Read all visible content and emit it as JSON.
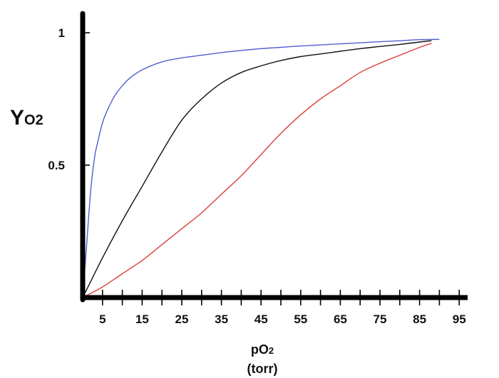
{
  "chart_data": {
    "type": "line",
    "title": "",
    "xlabel": "pO2",
    "xlabel_unit": "(torr)",
    "ylabel": "YO2",
    "xlim": [
      0,
      100
    ],
    "ylim": [
      0,
      1.05
    ],
    "x_ticks": [
      5,
      15,
      25,
      35,
      45,
      55,
      65,
      75,
      85,
      95
    ],
    "x_minor_ticks": [
      0,
      10,
      20,
      30,
      40,
      50,
      60,
      70,
      80,
      90
    ],
    "y_ticks": [
      {
        "value": 0.5,
        "label": "0.5"
      },
      {
        "value": 1,
        "label": "1"
      }
    ],
    "grid": false,
    "series": [
      {
        "name": "blue curve",
        "color": "#4f5fd0",
        "x": [
          0,
          1,
          2,
          3,
          4,
          5,
          6,
          8,
          10,
          12,
          15,
          20,
          25,
          30,
          35,
          40,
          45,
          50,
          55,
          60,
          65,
          70,
          75,
          80,
          85,
          90
        ],
        "y": [
          0.0,
          0.2,
          0.4,
          0.53,
          0.6,
          0.66,
          0.7,
          0.76,
          0.8,
          0.83,
          0.86,
          0.89,
          0.905,
          0.915,
          0.925,
          0.933,
          0.94,
          0.945,
          0.95,
          0.954,
          0.958,
          0.962,
          0.966,
          0.97,
          0.974,
          0.975
        ]
      },
      {
        "name": "black curve",
        "color": "#111111",
        "x": [
          0,
          1,
          2,
          5,
          10,
          15,
          20,
          25,
          30,
          35,
          40,
          45,
          50,
          55,
          60,
          65,
          70,
          75,
          80,
          85,
          88
        ],
        "y": [
          0.0,
          0.03,
          0.06,
          0.15,
          0.29,
          0.42,
          0.55,
          0.67,
          0.75,
          0.81,
          0.85,
          0.875,
          0.895,
          0.91,
          0.92,
          0.93,
          0.94,
          0.948,
          0.956,
          0.965,
          0.97
        ]
      },
      {
        "name": "red curve",
        "color": "#d9413b",
        "x": [
          0,
          5,
          10,
          15,
          20,
          25,
          30,
          35,
          40,
          45,
          50,
          55,
          60,
          65,
          70,
          75,
          80,
          85,
          88
        ],
        "y": [
          0.0,
          0.04,
          0.09,
          0.14,
          0.2,
          0.26,
          0.32,
          0.39,
          0.46,
          0.54,
          0.62,
          0.69,
          0.75,
          0.8,
          0.85,
          0.885,
          0.915,
          0.945,
          0.96
        ]
      }
    ]
  }
}
